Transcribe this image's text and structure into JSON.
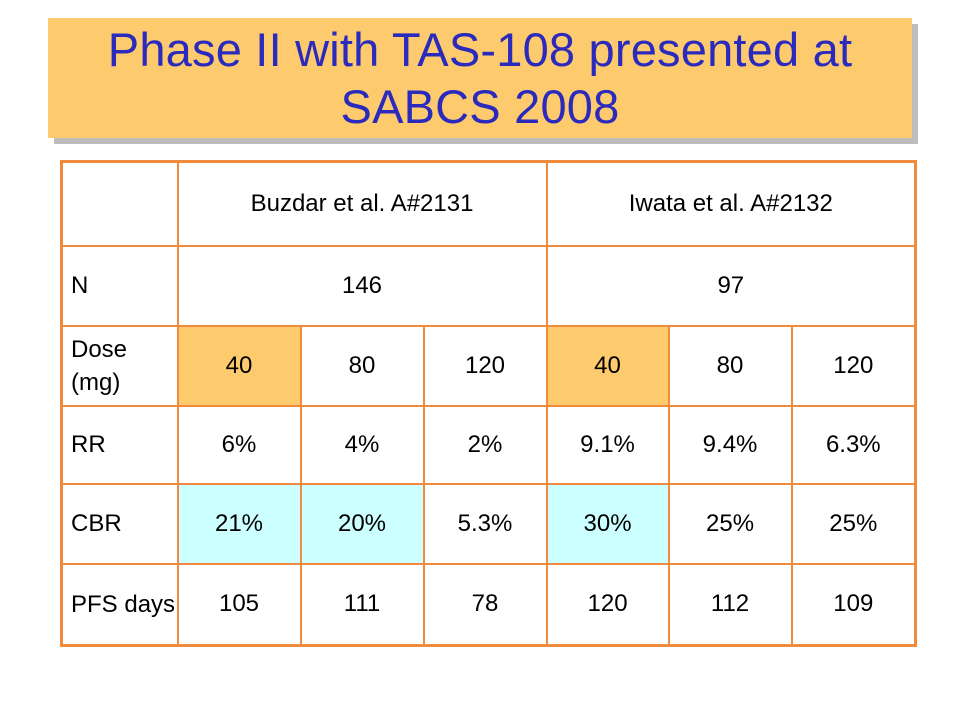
{
  "title": "Phase II with TAS-108 presented at SABCS 2008",
  "colors": {
    "title_bg": "#fdca6e",
    "title_text": "#2a2abd",
    "table_border": "#f08a3c",
    "highlight_orange": "#fdca6e",
    "highlight_cyan": "#ccffff"
  },
  "table": {
    "header": {
      "corner": "",
      "study1": "Buzdar et al. A#2131",
      "study2": "Iwata et al. A#2132"
    },
    "n_row": {
      "label": "N",
      "study1": "146",
      "study2": "97"
    },
    "dose_row": {
      "label": "Dose (mg)",
      "values": [
        "40",
        "80",
        "120",
        "40",
        "80",
        "120"
      ]
    },
    "rr_row": {
      "label": "RR",
      "values": [
        "6%",
        "4%",
        "2%",
        "9.1%",
        "9.4%",
        "6.3%"
      ]
    },
    "cbr_row": {
      "label": "CBR",
      "values": [
        "21%",
        "20%",
        "5.3%",
        "30%",
        "25%",
        "25%"
      ]
    },
    "pfs_row": {
      "label": "PFS days",
      "values": [
        "105",
        "111",
        "78",
        "120",
        "112",
        "109"
      ]
    }
  }
}
